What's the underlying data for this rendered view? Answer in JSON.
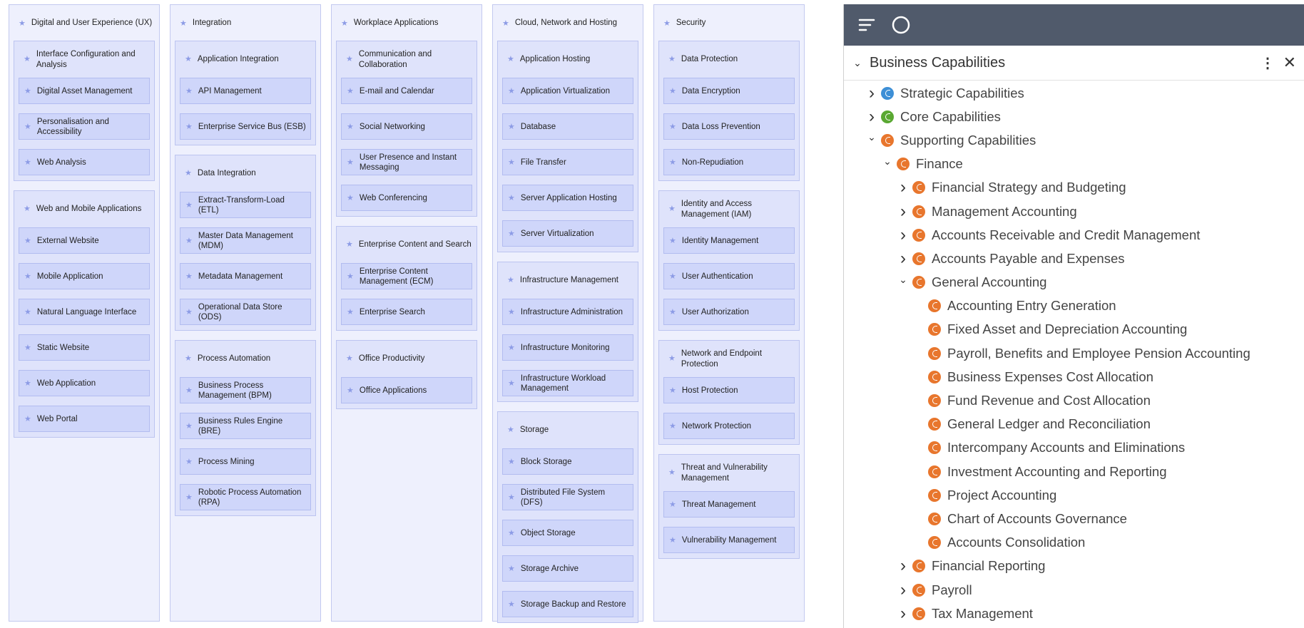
{
  "columns": [
    {
      "title": "Digital and User Experience (UX)",
      "groups": [
        {
          "title": "Interface Configuration and Analysis",
          "items": [
            "Digital Asset Management",
            "Personalisation and Accessibility",
            "Web Analysis"
          ]
        },
        {
          "title": "Web and Mobile Applications",
          "items": [
            "External Website",
            "Mobile Application",
            "Natural Language Interface",
            "Static Website",
            "Web Application",
            "Web Portal"
          ]
        }
      ]
    },
    {
      "title": "Integration",
      "groups": [
        {
          "title": "Application Integration",
          "items": [
            "API Management",
            "Enterprise Service Bus (ESB)"
          ]
        },
        {
          "title": "Data Integration",
          "items": [
            "Extract-Transform-Load (ETL)",
            "Master Data Management (MDM)",
            "Metadata Management",
            "Operational Data Store (ODS)"
          ]
        },
        {
          "title": "Process Automation",
          "items": [
            "Business Process Management (BPM)",
            "Business Rules Engine (BRE)",
            "Process Mining",
            "Robotic Process Automation (RPA)"
          ]
        }
      ]
    },
    {
      "title": "Workplace Applications",
      "groups": [
        {
          "title": "Communication and Collaboration",
          "items": [
            "E-mail and Calendar",
            "Social Networking",
            "User Presence and Instant Messaging",
            "Web Conferencing"
          ]
        },
        {
          "title": "Enterprise Content and Search",
          "items": [
            "Enterprise Content Management (ECM)",
            "Enterprise Search"
          ]
        },
        {
          "title": "Office Productivity",
          "items": [
            "Office Applications"
          ]
        }
      ]
    },
    {
      "title": "Cloud, Network and Hosting",
      "groups": [
        {
          "title": "Application Hosting",
          "items": [
            "Application Virtualization",
            "Database",
            "File Transfer",
            "Server Application Hosting",
            "Server Virtualization"
          ]
        },
        {
          "title": "Infrastructure Management",
          "items": [
            "Infrastructure Administration",
            "Infrastructure Monitoring",
            "Infrastructure Workload Management"
          ]
        },
        {
          "title": "Storage",
          "items": [
            "Block Storage",
            "Distributed File System (DFS)",
            "Object Storage",
            "Storage Archive",
            "Storage Backup and Restore"
          ]
        }
      ]
    },
    {
      "title": "Security",
      "groups": [
        {
          "title": "Data Protection",
          "items": [
            "Data Encryption",
            "Data Loss Prevention",
            "Non-Repudiation"
          ]
        },
        {
          "title": "Identity and Access Management (IAM)",
          "items": [
            "Identity Management",
            "User Authentication",
            "User Authorization"
          ]
        },
        {
          "title": "Network and Endpoint Protection",
          "items": [
            "Host Protection",
            "Network Protection"
          ]
        },
        {
          "title": "Threat and Vulnerability Management",
          "items": [
            "Threat Management",
            "Vulnerability Management"
          ]
        }
      ]
    }
  ],
  "panel": {
    "title": "Business Capabilities",
    "tree": [
      {
        "label": "Strategic Capabilities",
        "level": 0,
        "state": "collapsed",
        "color": "#3d8fd6"
      },
      {
        "label": "Core Capabilities",
        "level": 0,
        "state": "collapsed",
        "color": "#5aa832"
      },
      {
        "label": "Supporting Capabilities",
        "level": 0,
        "state": "expanded",
        "color": "#e8762d"
      },
      {
        "label": "Finance",
        "level": 1,
        "state": "expanded",
        "color": "#e8762d"
      },
      {
        "label": "Financial Strategy and Budgeting",
        "level": 2,
        "state": "collapsed",
        "color": "#e8762d"
      },
      {
        "label": "Management Accounting",
        "level": 2,
        "state": "collapsed",
        "color": "#e8762d"
      },
      {
        "label": "Accounts Receivable and Credit Management",
        "level": 2,
        "state": "collapsed",
        "color": "#e8762d"
      },
      {
        "label": "Accounts Payable and Expenses",
        "level": 2,
        "state": "collapsed",
        "color": "#e8762d"
      },
      {
        "label": "General Accounting",
        "level": 2,
        "state": "expanded",
        "color": "#e8762d"
      },
      {
        "label": "Accounting Entry Generation",
        "level": 3,
        "color": "#e8762d"
      },
      {
        "label": "Fixed Asset and Depreciation Accounting",
        "level": 3,
        "color": "#e8762d"
      },
      {
        "label": "Payroll, Benefits and Employee Pension Accounting",
        "level": 3,
        "color": "#e8762d"
      },
      {
        "label": "Business Expenses Cost Allocation",
        "level": 3,
        "color": "#e8762d"
      },
      {
        "label": "Fund Revenue and Cost Allocation",
        "level": 3,
        "color": "#e8762d"
      },
      {
        "label": "General Ledger and Reconciliation",
        "level": 3,
        "color": "#e8762d"
      },
      {
        "label": "Intercompany Accounts and Eliminations",
        "level": 3,
        "color": "#e8762d"
      },
      {
        "label": "Investment Accounting and Reporting",
        "level": 3,
        "color": "#e8762d"
      },
      {
        "label": "Project Accounting",
        "level": 3,
        "color": "#e8762d"
      },
      {
        "label": "Chart of Accounts Governance",
        "level": 3,
        "color": "#e8762d"
      },
      {
        "label": "Accounts Consolidation",
        "level": 3,
        "color": "#e8762d"
      },
      {
        "label": "Financial Reporting",
        "level": 2,
        "state": "collapsed",
        "color": "#e8762d"
      },
      {
        "label": "Payroll",
        "level": 2,
        "state": "collapsed",
        "color": "#e8762d"
      },
      {
        "label": "Tax Management",
        "level": 2,
        "state": "collapsed",
        "color": "#e8762d"
      }
    ]
  }
}
